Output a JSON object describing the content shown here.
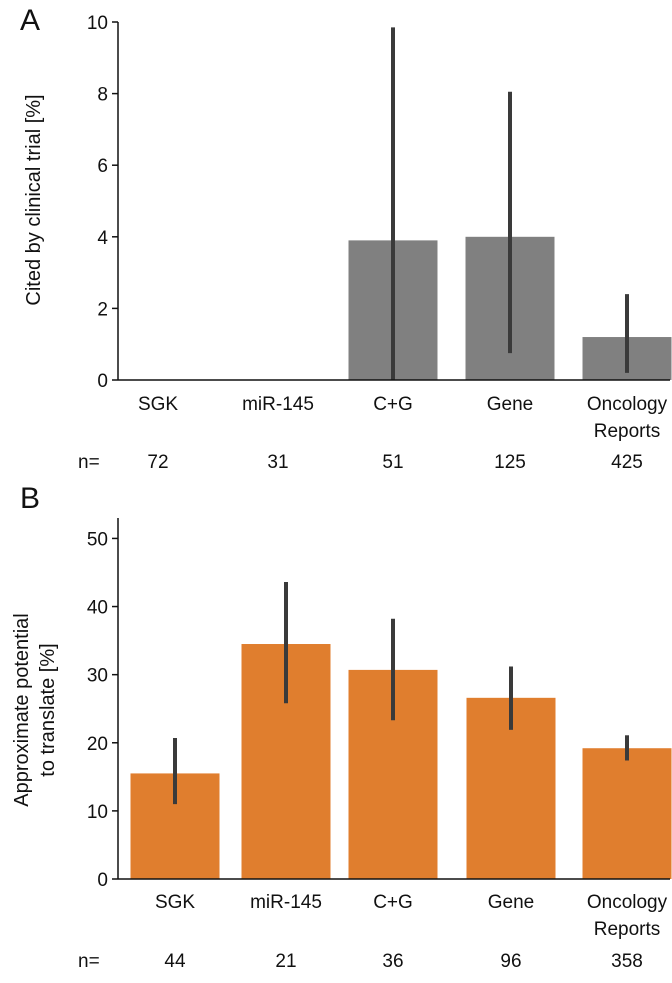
{
  "chart_data": [
    {
      "panel": "A",
      "type": "bar",
      "categories": [
        [
          "SGK"
        ],
        [
          "miR-145"
        ],
        [
          "C+G"
        ],
        [
          "Gene"
        ],
        [
          "Oncology",
          "Reports"
        ]
      ],
      "values": [
        0,
        0,
        3.9,
        4.0,
        1.2
      ],
      "error_low": [
        0,
        0,
        0,
        0.75,
        0.2
      ],
      "error_high": [
        0,
        0,
        9.85,
        8.05,
        2.4
      ],
      "n_prefix": "n=",
      "n": [
        "72",
        "31",
        "51",
        "125",
        "425"
      ],
      "ylabel": [
        "Cited by clinical trial [%]"
      ],
      "ylim": [
        0,
        10
      ],
      "yticks": [
        "0",
        "2",
        "4",
        "6",
        "8",
        "10"
      ],
      "bar_color": "#808080",
      "error_color": "#3a3a3a",
      "grid": false
    },
    {
      "panel": "B",
      "type": "bar",
      "categories": [
        [
          "SGK"
        ],
        [
          "miR-145"
        ],
        [
          "C+G"
        ],
        [
          "Gene"
        ],
        [
          "Oncology",
          "Reports"
        ]
      ],
      "values": [
        15.5,
        34.5,
        30.7,
        26.6,
        19.2
      ],
      "error_low": [
        11,
        25.8,
        23.3,
        21.9,
        17.4
      ],
      "error_high": [
        20.7,
        43.6,
        38.2,
        31.2,
        21.1
      ],
      "n_prefix": "n=",
      "n": [
        "44",
        "21",
        "36",
        "96",
        "358"
      ],
      "ylabel": [
        "Approximate potential",
        "to translate [%]"
      ],
      "ylim": [
        0,
        53
      ],
      "yticks": [
        "0",
        "10",
        "20",
        "30",
        "40",
        "50"
      ],
      "bar_color": "#e07e2e",
      "error_color": "#3a3a3a",
      "grid": false
    }
  ]
}
